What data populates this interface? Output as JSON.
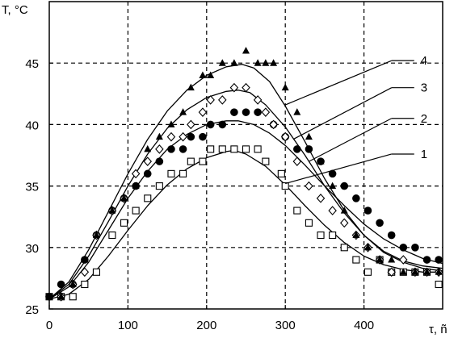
{
  "chart_data": {
    "type": "scatter",
    "title": "",
    "xlabel": "τ, ñ",
    "ylabel": "T, °C",
    "xlim": [
      0,
      500
    ],
    "ylim": [
      25,
      50
    ],
    "x_ticks": [
      "0",
      "100",
      "200",
      "300",
      "400"
    ],
    "y_ticks": [
      "25",
      "30",
      "35",
      "40",
      "45"
    ],
    "grid": "dashed",
    "colors": {
      "marks": "#000000",
      "grid": "#000000"
    },
    "series": [
      {
        "name": "1",
        "marker": "open-square",
        "points": [
          [
            0,
            26
          ],
          [
            15,
            26
          ],
          [
            30,
            26
          ],
          [
            45,
            27
          ],
          [
            60,
            28
          ],
          [
            80,
            31
          ],
          [
            95,
            32
          ],
          [
            110,
            33
          ],
          [
            125,
            34
          ],
          [
            140,
            35
          ],
          [
            155,
            36
          ],
          [
            170,
            36
          ],
          [
            180,
            37
          ],
          [
            195,
            37
          ],
          [
            205,
            38
          ],
          [
            220,
            38
          ],
          [
            235,
            38
          ],
          [
            250,
            38
          ],
          [
            265,
            38
          ],
          [
            275,
            37
          ],
          [
            295,
            36
          ],
          [
            300,
            35
          ],
          [
            315,
            33
          ],
          [
            330,
            32
          ],
          [
            345,
            31
          ],
          [
            360,
            31
          ],
          [
            375,
            30
          ],
          [
            390,
            29
          ],
          [
            405,
            28
          ],
          [
            420,
            29
          ],
          [
            435,
            28
          ],
          [
            450,
            28
          ],
          [
            465,
            28
          ],
          [
            480,
            28
          ],
          [
            495,
            27
          ]
        ],
        "curve": [
          [
            0,
            25.8
          ],
          [
            25,
            26.2
          ],
          [
            50,
            27.4
          ],
          [
            75,
            29.3
          ],
          [
            100,
            31.4
          ],
          [
            125,
            33.4
          ],
          [
            150,
            35.1
          ],
          [
            175,
            36.4
          ],
          [
            200,
            37.3
          ],
          [
            225,
            37.8
          ],
          [
            235,
            37.9
          ],
          [
            250,
            37.6
          ],
          [
            275,
            36.6
          ],
          [
            300,
            35.1
          ],
          [
            325,
            33.4
          ],
          [
            350,
            31.8
          ],
          [
            375,
            30.4
          ],
          [
            400,
            29.3
          ],
          [
            425,
            28.6
          ],
          [
            450,
            28.2
          ],
          [
            475,
            28.0
          ],
          [
            500,
            28.0
          ]
        ]
      },
      {
        "name": "2",
        "marker": "filled-circle",
        "points": [
          [
            0,
            26
          ],
          [
            15,
            27
          ],
          [
            30,
            27
          ],
          [
            45,
            29
          ],
          [
            60,
            31
          ],
          [
            80,
            33
          ],
          [
            95,
            34
          ],
          [
            110,
            35
          ],
          [
            125,
            36
          ],
          [
            140,
            37
          ],
          [
            155,
            38
          ],
          [
            170,
            38
          ],
          [
            180,
            39
          ],
          [
            195,
            39
          ],
          [
            205,
            40
          ],
          [
            220,
            40
          ],
          [
            235,
            41
          ],
          [
            250,
            41
          ],
          [
            265,
            41
          ],
          [
            285,
            40
          ],
          [
            300,
            39
          ],
          [
            315,
            38
          ],
          [
            330,
            38
          ],
          [
            345,
            37
          ],
          [
            360,
            36
          ],
          [
            375,
            35
          ],
          [
            390,
            34
          ],
          [
            405,
            33
          ],
          [
            420,
            32
          ],
          [
            435,
            31
          ],
          [
            450,
            30
          ],
          [
            465,
            30
          ],
          [
            480,
            29
          ],
          [
            495,
            29
          ]
        ],
        "curve": [
          [
            0,
            25.8
          ],
          [
            25,
            26.8
          ],
          [
            50,
            28.8
          ],
          [
            75,
            31.4
          ],
          [
            100,
            34.0
          ],
          [
            125,
            36.2
          ],
          [
            150,
            38.0
          ],
          [
            175,
            39.2
          ],
          [
            200,
            40.0
          ],
          [
            225,
            40.3
          ],
          [
            240,
            40.3
          ],
          [
            260,
            40.0
          ],
          [
            280,
            39.3
          ],
          [
            300,
            38.3
          ],
          [
            325,
            36.7
          ],
          [
            350,
            35.0
          ],
          [
            375,
            33.4
          ],
          [
            400,
            31.9
          ],
          [
            425,
            30.7
          ],
          [
            450,
            29.8
          ],
          [
            475,
            29.1
          ],
          [
            500,
            28.7
          ]
        ]
      },
      {
        "name": "3",
        "marker": "open-diamond",
        "points": [
          [
            15,
            26
          ],
          [
            30,
            27
          ],
          [
            45,
            28
          ],
          [
            60,
            31
          ],
          [
            80,
            33
          ],
          [
            95,
            34
          ],
          [
            110,
            36
          ],
          [
            125,
            37
          ],
          [
            140,
            38
          ],
          [
            155,
            39
          ],
          [
            170,
            39
          ],
          [
            180,
            40
          ],
          [
            195,
            41
          ],
          [
            205,
            42
          ],
          [
            220,
            42
          ],
          [
            235,
            43
          ],
          [
            250,
            43
          ],
          [
            265,
            42
          ],
          [
            275,
            41
          ],
          [
            285,
            40
          ],
          [
            300,
            39
          ],
          [
            315,
            37
          ],
          [
            330,
            35
          ],
          [
            345,
            34
          ],
          [
            360,
            33
          ],
          [
            375,
            32
          ],
          [
            390,
            31
          ],
          [
            405,
            30
          ],
          [
            420,
            29
          ],
          [
            435,
            28
          ],
          [
            450,
            29
          ],
          [
            465,
            28
          ],
          [
            480,
            28
          ],
          [
            495,
            28
          ]
        ],
        "curve": [
          [
            0,
            25.8
          ],
          [
            25,
            27.0
          ],
          [
            50,
            29.3
          ],
          [
            75,
            32.1
          ],
          [
            100,
            35.0
          ],
          [
            125,
            37.6
          ],
          [
            150,
            39.7
          ],
          [
            175,
            41.2
          ],
          [
            200,
            42.2
          ],
          [
            225,
            42.7
          ],
          [
            240,
            42.8
          ],
          [
            255,
            42.6
          ],
          [
            275,
            41.6
          ],
          [
            300,
            39.8
          ],
          [
            325,
            37.5
          ],
          [
            350,
            35.0
          ],
          [
            375,
            32.8
          ],
          [
            400,
            31.0
          ],
          [
            425,
            29.7
          ],
          [
            450,
            28.9
          ],
          [
            475,
            28.5
          ],
          [
            500,
            28.3
          ]
        ]
      },
      {
        "name": "4",
        "marker": "filled-triangle",
        "points": [
          [
            0,
            26
          ],
          [
            15,
            26
          ],
          [
            30,
            27
          ],
          [
            45,
            29
          ],
          [
            60,
            31
          ],
          [
            80,
            33
          ],
          [
            95,
            34
          ],
          [
            110,
            35
          ],
          [
            125,
            38
          ],
          [
            140,
            39
          ],
          [
            155,
            40
          ],
          [
            170,
            41
          ],
          [
            180,
            43
          ],
          [
            195,
            44
          ],
          [
            205,
            44
          ],
          [
            220,
            45
          ],
          [
            235,
            45
          ],
          [
            250,
            46
          ],
          [
            265,
            45
          ],
          [
            275,
            45
          ],
          [
            285,
            45
          ],
          [
            300,
            43
          ],
          [
            315,
            41
          ],
          [
            330,
            39
          ],
          [
            345,
            37
          ],
          [
            360,
            35
          ],
          [
            375,
            33
          ],
          [
            390,
            31
          ],
          [
            405,
            30
          ],
          [
            420,
            29
          ],
          [
            435,
            29
          ],
          [
            450,
            28
          ],
          [
            465,
            28
          ],
          [
            480,
            28
          ],
          [
            495,
            28
          ]
        ],
        "curve": [
          [
            0,
            25.8
          ],
          [
            25,
            27.2
          ],
          [
            50,
            29.8
          ],
          [
            75,
            32.9
          ],
          [
            100,
            36.0
          ],
          [
            125,
            38.8
          ],
          [
            150,
            41.1
          ],
          [
            175,
            42.8
          ],
          [
            200,
            44.0
          ],
          [
            225,
            44.7
          ],
          [
            245,
            44.9
          ],
          [
            260,
            44.6
          ],
          [
            280,
            43.5
          ],
          [
            300,
            41.5
          ],
          [
            325,
            38.6
          ],
          [
            350,
            35.6
          ],
          [
            375,
            33.0
          ],
          [
            400,
            31.0
          ],
          [
            425,
            29.6
          ],
          [
            450,
            28.8
          ],
          [
            475,
            28.3
          ],
          [
            500,
            28.1
          ]
        ]
      }
    ],
    "annotations": [
      {
        "label": "1",
        "points_to_series": "1",
        "target": [
          300,
          35.2
        ],
        "text_pos": [
          470,
          37.6
        ]
      },
      {
        "label": "2",
        "points_to_series": "2",
        "target": [
          330,
          37.0
        ],
        "text_pos": [
          470,
          40.5
        ]
      },
      {
        "label": "3",
        "points_to_series": "3",
        "target": [
          310,
          38.8
        ],
        "text_pos": [
          470,
          43.0
        ]
      },
      {
        "label": "4",
        "points_to_series": "4",
        "target": [
          300,
          41.6
        ],
        "text_pos": [
          470,
          45.2
        ]
      }
    ]
  }
}
